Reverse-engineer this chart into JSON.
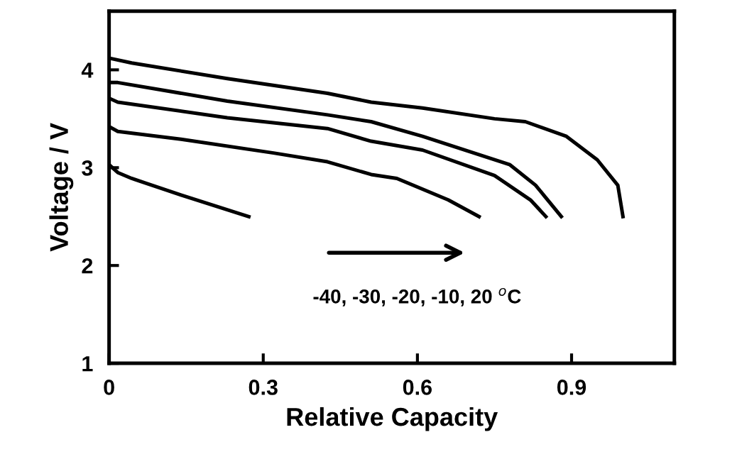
{
  "chart_data": {
    "type": "line",
    "xlabel": "Relative Capacity",
    "ylabel": "Voltage / V",
    "xlim": [
      0,
      1.1
    ],
    "ylim": [
      1,
      4.6
    ],
    "xticks": [
      0,
      0.3,
      0.6,
      0.9
    ],
    "yticks": [
      1,
      2,
      3,
      4
    ],
    "grid": false,
    "legend": false,
    "marker": "none",
    "line_style": "solid",
    "series": [
      {
        "color": "#000000",
        "x": [
          0,
          0.017,
          0.044,
          0.14,
          0.272
        ],
        "values": [
          3.03,
          2.95,
          2.89,
          2.72,
          2.5
        ]
      },
      {
        "color": "#000000",
        "x": [
          0,
          0.017,
          0.14,
          0.32,
          0.425,
          0.51,
          0.56,
          0.66,
          0.72
        ],
        "values": [
          3.42,
          3.37,
          3.29,
          3.15,
          3.06,
          2.93,
          2.89,
          2.67,
          2.5
        ]
      },
      {
        "color": "#000000",
        "x": [
          0,
          0.017,
          0.23,
          0.425,
          0.51,
          0.61,
          0.75,
          0.82,
          0.85
        ],
        "values": [
          3.71,
          3.67,
          3.51,
          3.4,
          3.27,
          3.18,
          2.92,
          2.67,
          2.5
        ]
      },
      {
        "color": "#000000",
        "x": [
          0,
          0.017,
          0.23,
          0.425,
          0.51,
          0.61,
          0.78,
          0.83,
          0.88
        ],
        "values": [
          3.87,
          3.87,
          3.68,
          3.54,
          3.47,
          3.32,
          3.03,
          2.82,
          2.5
        ]
      },
      {
        "color": "#000000",
        "x": [
          0,
          0.044,
          0.23,
          0.425,
          0.51,
          0.61,
          0.75,
          0.81,
          0.89,
          0.95,
          0.99,
          1.0
        ],
        "values": [
          4.12,
          4.07,
          3.91,
          3.76,
          3.67,
          3.61,
          3.5,
          3.47,
          3.32,
          3.08,
          2.82,
          2.5
        ]
      }
    ],
    "annotations": [
      "-40, -30, -20, -10, 20 $^{o}$C"
    ]
  }
}
